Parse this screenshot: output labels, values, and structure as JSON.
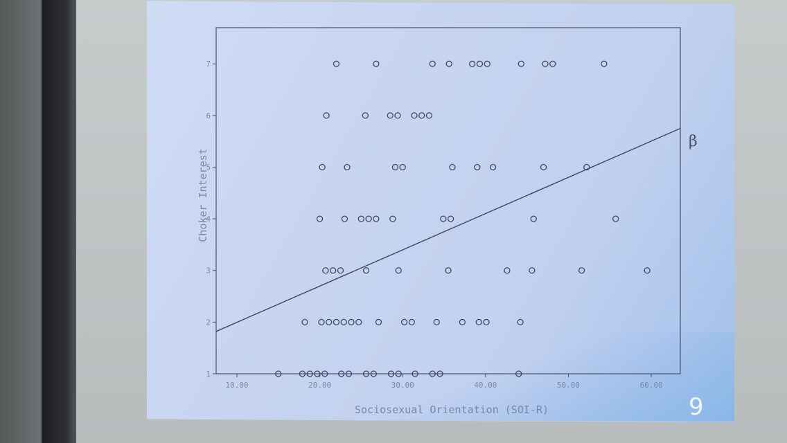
{
  "slide": {
    "number": "9",
    "annotation": "β"
  },
  "colors": {
    "slide_bg": "#c7d5f2",
    "axis": "#4a5068",
    "marker": "#3e4560",
    "label": "#7d86a6"
  },
  "chart_data": {
    "type": "scatter",
    "title": "",
    "xlabel": "Sociosexual Orientation (SOI-R)",
    "ylabel": "Choker Interest",
    "xlim": [
      7.5,
      63.5
    ],
    "ylim": [
      1,
      7.7
    ],
    "x_ticks": [
      10,
      20,
      30,
      40,
      50,
      60
    ],
    "x_tick_labels": [
      "10.00",
      "20.00",
      "30.00",
      "40.00",
      "50.00",
      "60.00"
    ],
    "y_ticks": [
      1,
      2,
      3,
      4,
      5,
      6,
      7
    ],
    "y_tick_labels": [
      "1",
      "2",
      "3",
      "4",
      "5",
      "6",
      "7"
    ],
    "fit_line": {
      "x": [
        7.5,
        63.5
      ],
      "y": [
        1.82,
        5.75
      ]
    },
    "points": [
      {
        "x": 22.0,
        "y": 7
      },
      {
        "x": 26.8,
        "y": 7
      },
      {
        "x": 33.6,
        "y": 7
      },
      {
        "x": 35.6,
        "y": 7
      },
      {
        "x": 38.4,
        "y": 7
      },
      {
        "x": 39.3,
        "y": 7
      },
      {
        "x": 40.2,
        "y": 7
      },
      {
        "x": 44.3,
        "y": 7
      },
      {
        "x": 47.2,
        "y": 7
      },
      {
        "x": 48.1,
        "y": 7
      },
      {
        "x": 54.3,
        "y": 7
      },
      {
        "x": 20.8,
        "y": 6
      },
      {
        "x": 25.5,
        "y": 6
      },
      {
        "x": 28.5,
        "y": 6
      },
      {
        "x": 29.4,
        "y": 6
      },
      {
        "x": 31.4,
        "y": 6
      },
      {
        "x": 32.3,
        "y": 6
      },
      {
        "x": 33.2,
        "y": 6
      },
      {
        "x": 20.3,
        "y": 5
      },
      {
        "x": 23.3,
        "y": 5
      },
      {
        "x": 29.1,
        "y": 5
      },
      {
        "x": 30.0,
        "y": 5
      },
      {
        "x": 36.0,
        "y": 5
      },
      {
        "x": 39.0,
        "y": 5
      },
      {
        "x": 40.9,
        "y": 5
      },
      {
        "x": 47.0,
        "y": 5
      },
      {
        "x": 52.2,
        "y": 5
      },
      {
        "x": 20.0,
        "y": 4
      },
      {
        "x": 23.0,
        "y": 4
      },
      {
        "x": 25.0,
        "y": 4
      },
      {
        "x": 25.9,
        "y": 4
      },
      {
        "x": 26.8,
        "y": 4
      },
      {
        "x": 28.8,
        "y": 4
      },
      {
        "x": 34.9,
        "y": 4
      },
      {
        "x": 35.8,
        "y": 4
      },
      {
        "x": 45.8,
        "y": 4
      },
      {
        "x": 55.7,
        "y": 4
      },
      {
        "x": 20.7,
        "y": 3
      },
      {
        "x": 21.6,
        "y": 3
      },
      {
        "x": 22.5,
        "y": 3
      },
      {
        "x": 25.6,
        "y": 3
      },
      {
        "x": 29.5,
        "y": 3
      },
      {
        "x": 35.5,
        "y": 3
      },
      {
        "x": 42.6,
        "y": 3
      },
      {
        "x": 45.6,
        "y": 3
      },
      {
        "x": 51.6,
        "y": 3
      },
      {
        "x": 59.5,
        "y": 3
      },
      {
        "x": 18.2,
        "y": 2
      },
      {
        "x": 20.2,
        "y": 2
      },
      {
        "x": 21.1,
        "y": 2
      },
      {
        "x": 22.0,
        "y": 2
      },
      {
        "x": 22.9,
        "y": 2
      },
      {
        "x": 23.8,
        "y": 2
      },
      {
        "x": 24.7,
        "y": 2
      },
      {
        "x": 27.1,
        "y": 2
      },
      {
        "x": 30.2,
        "y": 2
      },
      {
        "x": 31.1,
        "y": 2
      },
      {
        "x": 34.1,
        "y": 2
      },
      {
        "x": 37.2,
        "y": 2
      },
      {
        "x": 39.2,
        "y": 2
      },
      {
        "x": 40.1,
        "y": 2
      },
      {
        "x": 44.2,
        "y": 2
      },
      {
        "x": 15.0,
        "y": 1
      },
      {
        "x": 17.9,
        "y": 1
      },
      {
        "x": 18.8,
        "y": 1
      },
      {
        "x": 19.7,
        "y": 1
      },
      {
        "x": 20.6,
        "y": 1
      },
      {
        "x": 22.6,
        "y": 1
      },
      {
        "x": 23.5,
        "y": 1
      },
      {
        "x": 25.6,
        "y": 1
      },
      {
        "x": 26.5,
        "y": 1
      },
      {
        "x": 28.6,
        "y": 1
      },
      {
        "x": 29.5,
        "y": 1
      },
      {
        "x": 31.5,
        "y": 1
      },
      {
        "x": 33.6,
        "y": 1
      },
      {
        "x": 34.5,
        "y": 1
      },
      {
        "x": 44.0,
        "y": 1
      }
    ]
  }
}
